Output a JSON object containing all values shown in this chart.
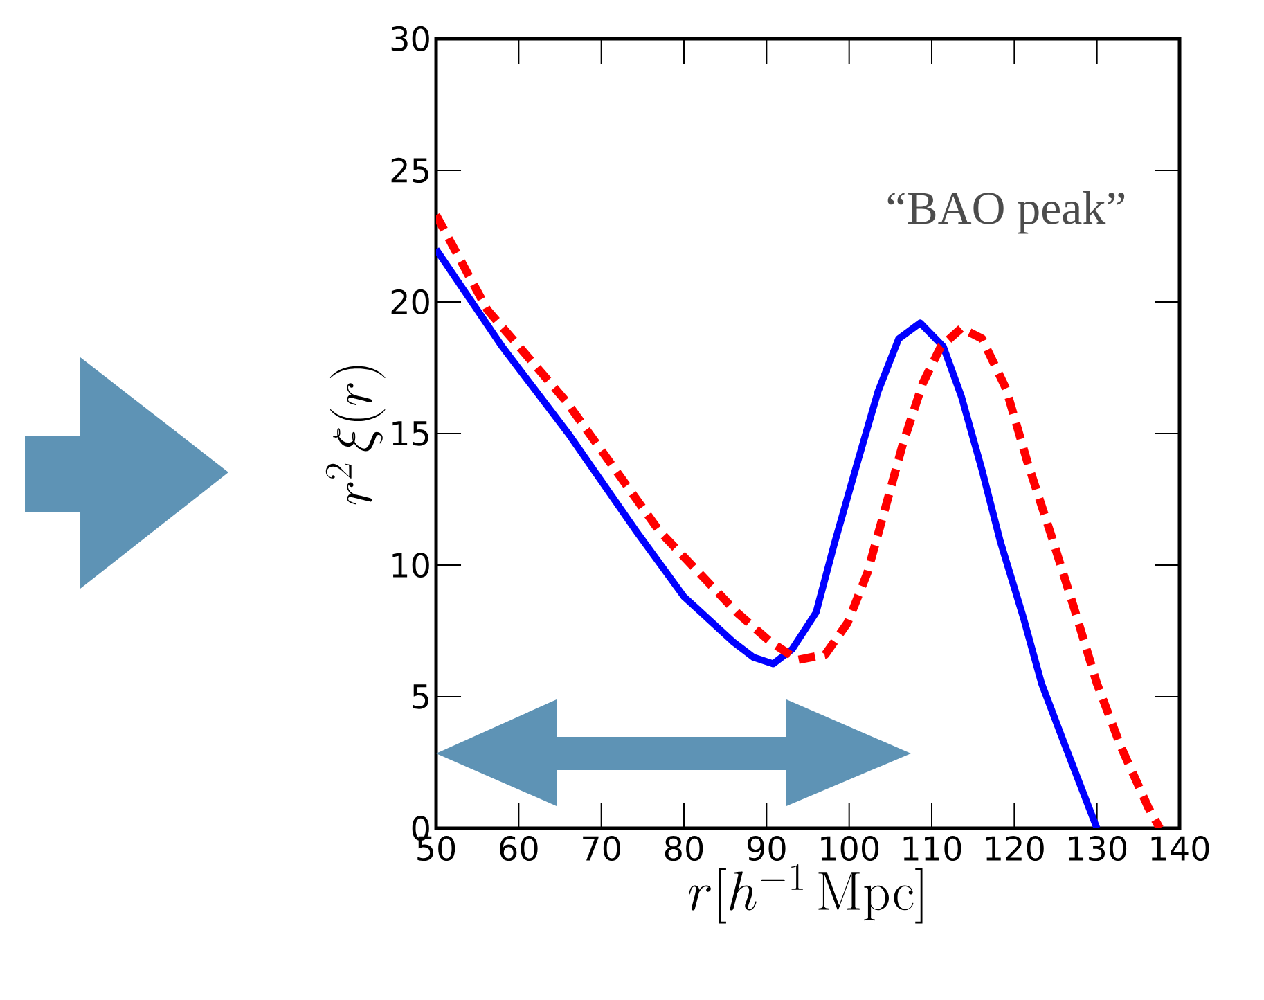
{
  "chart_data": {
    "type": "line",
    "xlabel": "r[h^{-1}\\,\\mathrm{Mpc}]",
    "ylabel": "r^2\\,\\xi(r)",
    "xlim": [
      50,
      140
    ],
    "xticks": [
      50,
      60,
      70,
      80,
      90,
      100,
      110,
      120,
      130,
      140
    ],
    "ylim": [
      0,
      30
    ],
    "yticks": [
      0,
      5,
      10,
      15,
      20,
      25,
      30
    ],
    "grid": false,
    "marker": "none",
    "annotations": [
      "“BAO peak”"
    ],
    "series": [
      {
        "color": "#0000ff",
        "line_style": "solid",
        "x": [
          50,
          58,
          66,
          74.2,
          80,
          85.9,
          88.4,
          90.8,
          93.1,
          96,
          98.2,
          101,
          103.5,
          106,
          108.6,
          111.4,
          113.6,
          116.1,
          118.3,
          121.1,
          123.3,
          126.2,
          130
        ],
        "values": [
          22,
          18.3,
          15,
          11.3,
          8.8,
          7.1,
          6.5,
          6.25,
          6.8,
          8.2,
          10.8,
          13.9,
          16.6,
          18.6,
          19.2,
          18.3,
          16.4,
          13.6,
          10.9,
          8,
          5.5,
          3.1,
          0
        ]
      },
      {
        "color": "#ff0000",
        "line_style": "dashed",
        "x": [
          50,
          56.2,
          65.8,
          77,
          86.4,
          90.4,
          93.8,
          97.1,
          99.8,
          102.2,
          104.4,
          106.5,
          108.9,
          111.1,
          113.6,
          116.1,
          119,
          121.6,
          124.5,
          127.3,
          130,
          132.9,
          136.2,
          137.6
        ],
        "values": [
          23.3,
          19.7,
          16.2,
          11.3,
          8.2,
          7.1,
          6.4,
          6.6,
          7.8,
          9.7,
          12.2,
          14.6,
          16.9,
          18.3,
          19,
          18.6,
          16.7,
          13.9,
          11.1,
          8.3,
          5.5,
          3.1,
          0.8,
          0
        ]
      }
    ]
  }
}
